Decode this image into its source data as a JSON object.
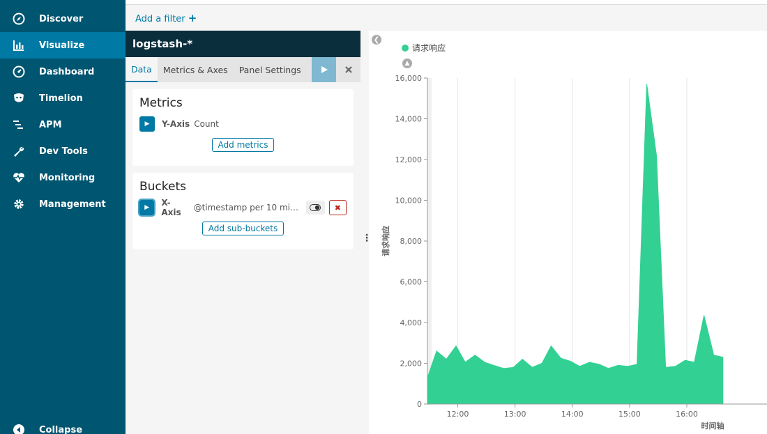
{
  "sidebar": {
    "items": [
      {
        "label": "Discover",
        "icon": "compass-icon",
        "active": false
      },
      {
        "label": "Visualize",
        "icon": "bar-chart-icon",
        "active": true
      },
      {
        "label": "Dashboard",
        "icon": "dashboard-gauge-icon",
        "active": false
      },
      {
        "label": "Timelion",
        "icon": "timelion-icon",
        "active": false
      },
      {
        "label": "APM",
        "icon": "apm-icon",
        "active": false
      },
      {
        "label": "Dev Tools",
        "icon": "wrench-icon",
        "active": false
      },
      {
        "label": "Monitoring",
        "icon": "heartbeat-icon",
        "active": false
      },
      {
        "label": "Management",
        "icon": "gear-icon",
        "active": false
      }
    ],
    "collapse_label": "Collapse"
  },
  "filterbar": {
    "add_filter_label": "Add a filter",
    "add_filter_plus": "+"
  },
  "editor": {
    "index_pattern": "logstash-*",
    "tabs": [
      "Data",
      "Metrics & Axes",
      "Panel Settings"
    ],
    "apply_icon": "play-icon",
    "discard_icon": "close-icon",
    "metrics": {
      "title": "Metrics",
      "agg_type": "Y-Axis",
      "agg_desc": "Count",
      "add_label": "Add metrics"
    },
    "buckets": {
      "title": "Buckets",
      "agg_type": "X-Axis",
      "agg_desc": "@timestamp per 10 minu...",
      "add_label": "Add sub-buckets"
    }
  },
  "legend": {
    "series_name": "请求响应",
    "color": "#32d193"
  },
  "colors": {
    "sidebar": "#005571",
    "active": "#0079a5",
    "series": "#32d193"
  },
  "chart_data": {
    "type": "area",
    "xlabel": "时间轴",
    "ylabel": "请求响应",
    "ylim": [
      0,
      16000
    ],
    "yticks": [
      0,
      2000,
      4000,
      6000,
      8000,
      10000,
      12000,
      14000,
      16000
    ],
    "ytick_labels": [
      "0",
      "2,000",
      "4,000",
      "6,000",
      "8,000",
      "10,000",
      "12,000",
      "14,000",
      "16,000"
    ],
    "xtick_labels": [
      "12:00",
      "13:00",
      "14:00",
      "15:00",
      "16:00"
    ],
    "xtick_hours": [
      12,
      13,
      14,
      15,
      16
    ],
    "xlim_hours": [
      11.47,
      17.4
    ],
    "x_hours": [
      11.47,
      11.63,
      11.8,
      11.97,
      12.13,
      12.3,
      12.47,
      12.63,
      12.8,
      12.97,
      13.13,
      13.3,
      13.47,
      13.63,
      13.8,
      13.97,
      14.13,
      14.3,
      14.47,
      14.63,
      14.8,
      14.97,
      15.13,
      15.3,
      15.47,
      15.63,
      15.8,
      15.97,
      16.13,
      16.3,
      16.47,
      16.63
    ],
    "series": [
      {
        "name": "请求响应",
        "values": [
          1300,
          2600,
          2200,
          2850,
          2050,
          2400,
          2050,
          1900,
          1750,
          1800,
          2200,
          1800,
          2000,
          2850,
          2250,
          2100,
          1850,
          2050,
          1950,
          1750,
          1900,
          1850,
          1950,
          15700,
          12200,
          1800,
          1850,
          2150,
          2050,
          4350,
          2400,
          2300
        ]
      }
    ]
  }
}
